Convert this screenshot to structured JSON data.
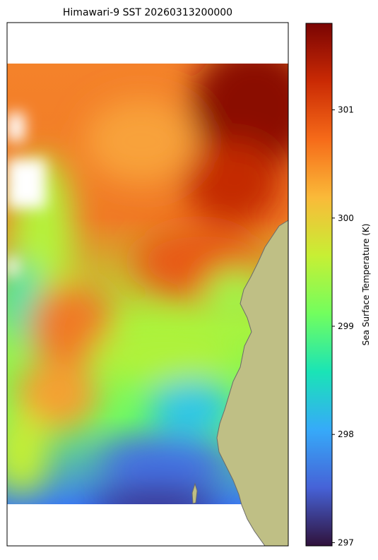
{
  "chart_data": {
    "type": "map",
    "title": "Himawari-9 SST 20260313200000",
    "colorbar": {
      "label": "Sea Surface Temperature (K)",
      "lim": [
        296.97,
        301.8
      ],
      "ticks": [
        297,
        298,
        299,
        300,
        301
      ],
      "colors": [
        "#30123b",
        "#4662d7",
        "#36aaf9",
        "#1ae4b6",
        "#72fe5e",
        "#c7ef34",
        "#faba39",
        "#f66b19",
        "#ca2a04",
        "#7a0403"
      ]
    }
  }
}
